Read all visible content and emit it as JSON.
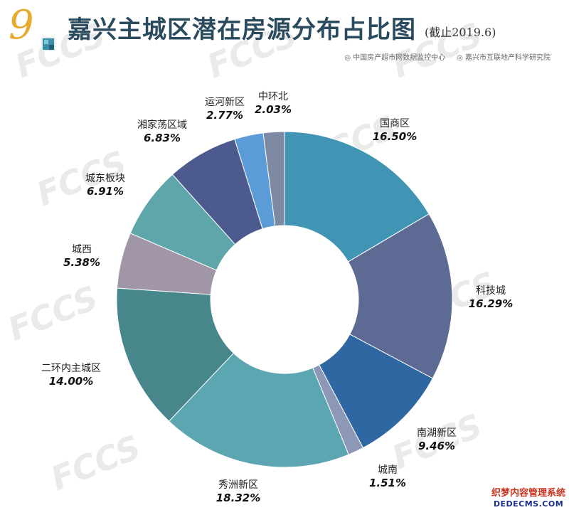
{
  "header": {
    "figure_number": "9",
    "title": "嘉兴主城区潜在房源分布占比图",
    "title_note": "(截止2019.6)",
    "sources": [
      "◎ 中国房产超市网数据监控中心",
      "◎ 嘉兴市互联地产科学研究院"
    ]
  },
  "watermark": {
    "text": "FCCS"
  },
  "corner_mark": {
    "line1": "织梦内容管理系统",
    "line2": "DEDECMS.COM"
  },
  "chart_data": {
    "type": "pie",
    "donut": true,
    "title": "嘉兴主城区潜在房源分布占比图",
    "unit": "%",
    "slices": [
      {
        "label": "国商区",
        "value": 16.5,
        "display": "16.50%",
        "color": "#3f95b3"
      },
      {
        "label": "科技城",
        "value": 16.29,
        "display": "16.29%",
        "color": "#5d6b94"
      },
      {
        "label": "南湖新区",
        "value": 9.46,
        "display": "9.46%",
        "color": "#2f67a3"
      },
      {
        "label": "城南",
        "value": 1.51,
        "display": "1.51%",
        "color": "#8c98b6"
      },
      {
        "label": "秀洲新区",
        "value": 18.32,
        "display": "18.32%",
        "color": "#5ba6b0"
      },
      {
        "label": "二环内主城区",
        "value": 14.0,
        "display": "14.00%",
        "color": "#47878b"
      },
      {
        "label": "城西",
        "value": 5.38,
        "display": "5.38%",
        "color": "#a195a8"
      },
      {
        "label": "城东板块",
        "value": 6.91,
        "display": "6.91%",
        "color": "#5fa6ab"
      },
      {
        "label": "湘家荡区域",
        "value": 6.83,
        "display": "6.83%",
        "color": "#4d5a8e"
      },
      {
        "label": "运河新区",
        "value": 2.77,
        "display": "2.77%",
        "color": "#5b9cd8"
      },
      {
        "label": "中环北",
        "value": 2.03,
        "display": "2.03%",
        "color": "#7e8aa3"
      }
    ]
  }
}
